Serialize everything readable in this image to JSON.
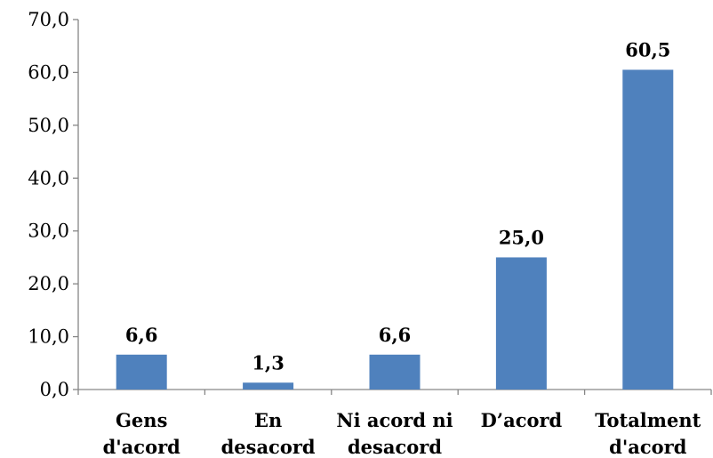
{
  "chart_data": {
    "type": "bar",
    "categories": [
      [
        "Gens",
        "d'acord"
      ],
      [
        "En",
        "desacord"
      ],
      [
        "Ni acord ni",
        "desacord"
      ],
      [
        "D’acord"
      ],
      [
        "Totalment",
        "d'acord"
      ]
    ],
    "values": [
      6.6,
      1.3,
      6.6,
      25.0,
      60.5
    ],
    "data_labels": [
      "6,6",
      "1,3",
      "6,6",
      "25,0",
      "60,5"
    ],
    "yticks": [
      "0,0",
      "10,0",
      "20,0",
      "30,0",
      "40,0",
      "50,0",
      "60,0",
      "70,0"
    ],
    "ylim": [
      0,
      70
    ],
    "bar_color": "#4f81bd",
    "grid": false,
    "legend": "none"
  }
}
